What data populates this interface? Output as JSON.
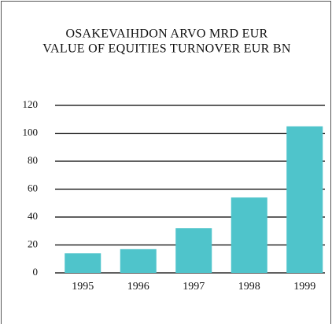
{
  "chart_data": {
    "type": "bar",
    "title": "OSAKEVAIHDON ARVO MRD EUR",
    "subtitle": "VALUE OF EQUITIES TURNOVER EUR BN",
    "categories": [
      "1995",
      "1996",
      "1997",
      "1998",
      "1999"
    ],
    "values": [
      14,
      17,
      32,
      54,
      105
    ],
    "color": "#4fc4cb",
    "ylim": [
      0,
      120
    ],
    "yticks": [
      0,
      20,
      40,
      60,
      80,
      100,
      120
    ],
    "grid": true
  }
}
